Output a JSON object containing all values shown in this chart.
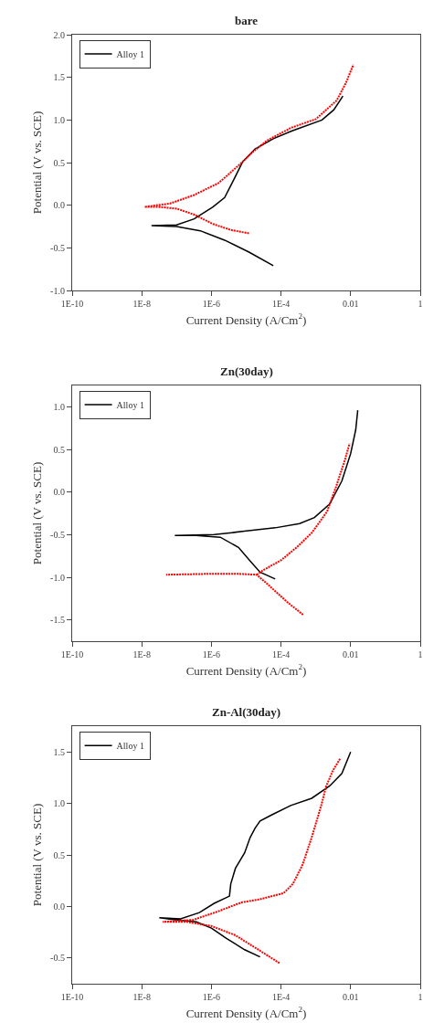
{
  "chart_data": [
    {
      "type": "line",
      "title": "bare",
      "xlabel": "Current Density (A/Cm$^{2}$)",
      "ylabel": "Potential (V vs. SCE)",
      "log": "x",
      "legend": "top left",
      "xlim": [
        1e-10,
        1
      ],
      "xticks": [
        {
          "value": 1e-10,
          "label": "1E-10"
        },
        {
          "value": 1e-08,
          "label": "1E-8"
        },
        {
          "value": 1e-06,
          "label": "1E-6"
        },
        {
          "value": 0.0001,
          "label": "1E-4"
        },
        {
          "value": 0.01,
          "label": "0.01"
        },
        {
          "value": 1,
          "label": "1"
        }
      ],
      "ylim": [
        -1.0,
        2.0
      ],
      "yticks": [
        {
          "value": -1.0,
          "label": "-1.0"
        },
        {
          "value": -0.5,
          "label": "-0.5"
        },
        {
          "value": 0.0,
          "label": "0.0"
        },
        {
          "value": 0.5,
          "label": "0.5"
        },
        {
          "value": 1.0,
          "label": "1.0"
        },
        {
          "value": 1.5,
          "label": "1.5"
        },
        {
          "value": 2.0,
          "label": "2.0"
        }
      ],
      "series": [
        {
          "name": "Alloy 1",
          "color": "#000000",
          "line_style": "solid",
          "x": [
            6e-05,
            1.2e-05,
            2.4e-06,
            4.8e-07,
            1e-07,
            1.9e-08,
            1e-07,
            3.2e-07,
            1.1e-06,
            2.4e-06,
            4.4e-06,
            7.9e-06,
            1.8e-05,
            6e-05,
            0.0002,
            0.0015,
            0.0033,
            0.006
          ],
          "values": [
            -0.71,
            -0.55,
            -0.41,
            -0.3,
            -0.25,
            -0.24,
            -0.23,
            -0.16,
            -0.02,
            0.09,
            0.3,
            0.51,
            0.66,
            0.78,
            0.87,
            1.0,
            1.12,
            1.28
          ]
        },
        {
          "color": "#ff0000",
          "line_style": "dotted",
          "x": [
            1.2e-05,
            3.6e-06,
            1.1e-06,
            3.2e-07,
            1e-07,
            3e-08,
            1.2e-08,
            6.5e-08,
            3.2e-07,
            1.6e-06,
            6.6e-06,
            1.5e-05,
            4e-05,
            0.0002,
            0.001,
            0.004,
            0.0074,
            0.012
          ],
          "values": [
            -0.33,
            -0.29,
            -0.22,
            -0.11,
            -0.04,
            -0.02,
            -0.02,
            0.02,
            0.12,
            0.26,
            0.48,
            0.62,
            0.76,
            0.91,
            1.01,
            1.23,
            1.44,
            1.65
          ]
        }
      ]
    },
    {
      "type": "line",
      "title": "Zn(30day)",
      "xlabel": "Current Density (A/Cm$^{2}$)",
      "ylabel": "Potential (V vs. SCE)",
      "log": "x",
      "legend": "top left",
      "xlim": [
        1e-10,
        1
      ],
      "xticks": [
        {
          "value": 1e-10,
          "label": "1E-10"
        },
        {
          "value": 1e-08,
          "label": "1E-8"
        },
        {
          "value": 1e-06,
          "label": "1E-6"
        },
        {
          "value": 0.0001,
          "label": "1E-4"
        },
        {
          "value": 0.01,
          "label": "0.01"
        },
        {
          "value": 1,
          "label": "1"
        }
      ],
      "ylim": [
        -1.75,
        1.25
      ],
      "yticks": [
        {
          "value": -1.5,
          "label": "-1.5"
        },
        {
          "value": -1.0,
          "label": "-1.0"
        },
        {
          "value": -0.5,
          "label": "-0.5"
        },
        {
          "value": 0.0,
          "label": "0.0"
        },
        {
          "value": 0.5,
          "label": "0.5"
        },
        {
          "value": 1.0,
          "label": "1.0"
        }
      ],
      "series": [
        {
          "name": "Alloy 1",
          "color": "#000000",
          "line_style": "solid",
          "x": [
            6.8e-05,
            2.5e-05,
            1.3e-05,
            6e-06,
            1.8e-06,
            3.6e-07,
            8.9e-08,
            1.2e-06,
            8.9e-06,
            6.8e-05,
            0.00034,
            0.00091,
            0.0025,
            0.0056,
            0.01,
            0.014,
            0.016
          ],
          "values": [
            -1.02,
            -0.94,
            -0.81,
            -0.65,
            -0.53,
            -0.51,
            -0.51,
            -0.5,
            -0.46,
            -0.42,
            -0.37,
            -0.3,
            -0.14,
            0.13,
            0.45,
            0.73,
            0.96
          ]
        },
        {
          "color": "#ff0000",
          "line_style": "dotted",
          "x": [
            0.00043,
            0.00015,
            4.6e-05,
            2e-05,
            6e-06,
            8.3e-07,
            5e-08,
            null,
            2e-05,
            3e-05,
            0.0001,
            0.00028,
            0.00076,
            0.0021,
            0.0038,
            0.0069,
            0.0093
          ],
          "values": [
            -1.44,
            -1.29,
            -1.1,
            -0.97,
            -0.96,
            -0.96,
            -0.97,
            null,
            -0.97,
            -0.92,
            -0.8,
            -0.65,
            -0.48,
            -0.23,
            0.06,
            0.38,
            0.57
          ]
        }
      ]
    },
    {
      "type": "line",
      "title": "Zn-Al(30day)",
      "xlabel": "Current Density (A/Cm$^{2}$)",
      "ylabel": "Potential (V vs. SCE)",
      "log": "x",
      "legend": "top left",
      "xlim": [
        1e-10,
        1
      ],
      "xticks": [
        {
          "value": 1e-10,
          "label": "1E-10"
        },
        {
          "value": 1e-08,
          "label": "1E-8"
        },
        {
          "value": 1e-06,
          "label": "1E-6"
        },
        {
          "value": 0.0001,
          "label": "1E-4"
        },
        {
          "value": 0.01,
          "label": "0.01"
        },
        {
          "value": 1,
          "label": "1"
        }
      ],
      "ylim": [
        -0.75,
        1.75
      ],
      "yticks": [
        {
          "value": -0.5,
          "label": "-0.5"
        },
        {
          "value": 0.0,
          "label": "0.0"
        },
        {
          "value": 0.5,
          "label": "0.5"
        },
        {
          "value": 1.0,
          "label": "1.0"
        },
        {
          "value": 1.5,
          "label": "1.5"
        }
      ],
      "series": [
        {
          "name": "Alloy 1",
          "color": "#000000",
          "line_style": "solid",
          "x": [
            2.5e-05,
            9e-06,
            2.7e-06,
            1e-06,
            3.7e-07,
            9e-08,
            3.2e-08,
            1.3e-07,
            4.5e-07,
            1.2e-06,
            3.3e-06,
            3.6e-06,
            4.9e-06,
            9e-06,
            1.3e-05,
            1.8e-05,
            2.5e-05,
            5.5e-05,
            0.00019,
            0.00076,
            0.0025,
            0.0056,
            0.01
          ],
          "values": [
            -0.49,
            -0.42,
            -0.31,
            -0.21,
            -0.15,
            -0.13,
            -0.11,
            -0.12,
            -0.06,
            0.03,
            0.1,
            0.22,
            0.37,
            0.52,
            0.67,
            0.76,
            0.83,
            0.89,
            0.98,
            1.05,
            1.17,
            1.29,
            1.5
          ]
        },
        {
          "color": "#ff0000",
          "line_style": "dotted",
          "x": [
            9e-05,
            2.5e-05,
            4.9e-06,
            1e-06,
            2e-07,
            4e-08,
            3e-07,
            1.5e-06,
            7.4e-06,
            2.5e-05,
            0.00012,
            0.00022,
            0.00041,
            0.00076,
            0.0014,
            0.002,
            0.0031,
            0.0051
          ],
          "values": [
            -0.55,
            -0.43,
            -0.28,
            -0.19,
            -0.15,
            -0.15,
            -0.13,
            -0.05,
            0.04,
            0.07,
            0.13,
            0.22,
            0.4,
            0.67,
            0.97,
            1.17,
            1.32,
            1.44
          ]
        }
      ]
    }
  ]
}
